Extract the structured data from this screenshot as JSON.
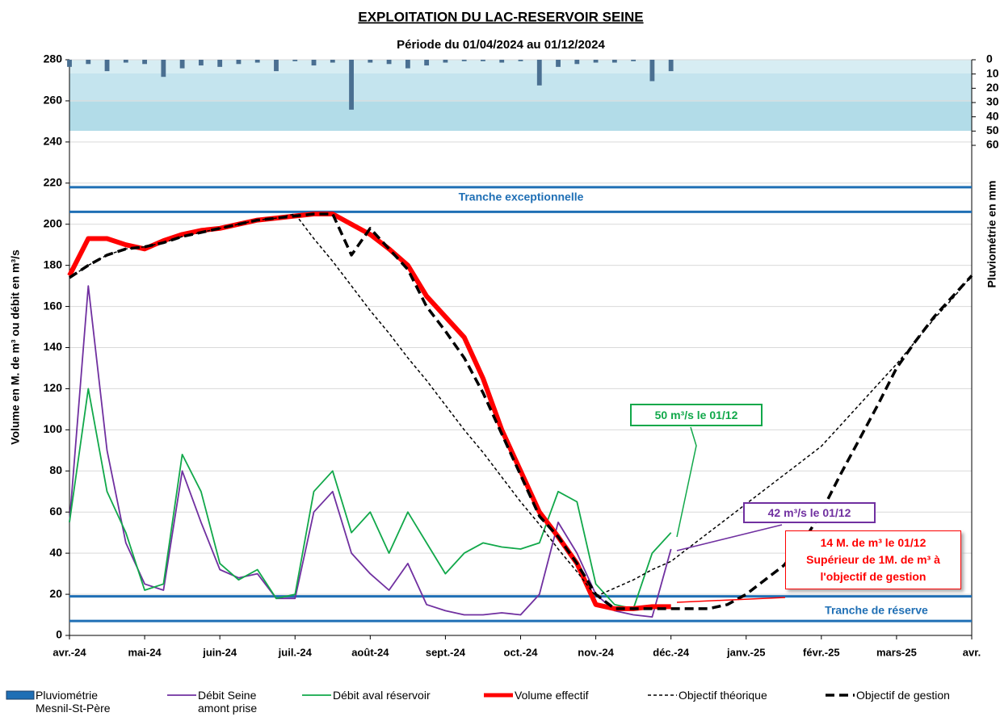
{
  "chart_data": {
    "type": "line",
    "title": "EXPLOITATION  DU  LAC-RESERVOIR  SEINE",
    "subtitle": "Période du 01/04/2024 au 01/12/2024",
    "y_label": "Volume en M. de m³ ou débit en m³/s",
    "y2_label": "Pluviométrie en mm",
    "categories": [
      "avr.-24",
      null,
      null,
      null,
      "mai-24",
      null,
      null,
      null,
      "juin-24",
      null,
      null,
      null,
      "juil.-24",
      null,
      null,
      null,
      "août-24",
      null,
      null,
      null,
      "sept.-24",
      null,
      null,
      null,
      "oct.-24",
      null,
      null,
      null,
      "nov.-24",
      null,
      null,
      null,
      "déc.-24",
      null,
      null,
      null,
      "janv.-25",
      null,
      null,
      null,
      "févr.-25",
      null,
      null,
      null,
      "mars-25",
      null,
      null,
      null,
      "avr."
    ],
    "ylim": [
      0,
      280
    ],
    "yticks": [
      0,
      20,
      40,
      60,
      80,
      100,
      120,
      140,
      160,
      180,
      200,
      220,
      240,
      260,
      280
    ],
    "y2lim": [
      0,
      60
    ],
    "y2ticks": [
      0,
      10,
      20,
      30,
      40,
      50,
      60
    ],
    "y2_inverted": true,
    "grid": true,
    "reference_lines": [
      {
        "value": 218
      },
      {
        "value": 206,
        "label": "Tranche exceptionnelle"
      },
      {
        "value": 19,
        "label": "Tranche de réserve"
      },
      {
        "value": 7
      }
    ],
    "reference_color": "#1f6fb5",
    "series": [
      {
        "name": "Pluviométrie Mesnil-St-Père",
        "type": "bar",
        "axis": "y2",
        "color": "#4a6f91",
        "values": [
          5,
          3,
          8,
          2,
          3,
          12,
          6,
          4,
          5,
          3,
          2,
          8,
          1,
          4,
          2,
          35,
          2,
          3,
          6,
          4,
          2,
          1,
          1,
          2,
          1,
          18,
          5,
          3,
          2,
          2,
          1,
          15,
          8,
          null,
          null,
          null,
          null,
          null,
          null,
          null,
          null,
          null,
          null,
          null,
          null,
          null,
          null,
          null,
          null
        ]
      },
      {
        "name": "Débit Seine amont prise",
        "color": "#7030a0",
        "style": "solid",
        "values": [
          55,
          170,
          90,
          45,
          25,
          22,
          80,
          55,
          32,
          28,
          30,
          18,
          18,
          60,
          70,
          40,
          30,
          22,
          35,
          15,
          12,
          10,
          10,
          11,
          10,
          20,
          55,
          40,
          20,
          12,
          10,
          9,
          42,
          null,
          null,
          null,
          null,
          null,
          null,
          null,
          null,
          null,
          null,
          null,
          null,
          null,
          null,
          null,
          null
        ]
      },
      {
        "name": "Débit aval réservoir",
        "color": "#11a84a",
        "style": "solid",
        "values": [
          55,
          120,
          70,
          50,
          22,
          25,
          88,
          70,
          35,
          27,
          32,
          18,
          20,
          70,
          80,
          50,
          60,
          40,
          60,
          45,
          30,
          40,
          45,
          43,
          42,
          45,
          70,
          65,
          25,
          15,
          13,
          40,
          50,
          null,
          null,
          null,
          null,
          null,
          null,
          null,
          null,
          null,
          null,
          null,
          null,
          null,
          null,
          null,
          null
        ]
      },
      {
        "name": "Volume effectif",
        "color": "#ff0000",
        "style": "thick",
        "values": [
          175,
          193,
          193,
          190,
          188,
          192,
          195,
          197,
          198,
          200,
          202,
          203,
          204,
          205,
          205,
          200,
          195,
          188,
          180,
          165,
          155,
          145,
          125,
          100,
          80,
          60,
          48,
          35,
          15,
          13,
          13,
          14,
          14,
          null,
          null,
          null,
          null,
          null,
          null,
          null,
          null,
          null,
          null,
          null,
          null,
          null,
          null,
          null,
          null
        ]
      },
      {
        "name": "Objectif théorique",
        "color": "#000000",
        "style": "dashed-thin",
        "values": [
          174,
          180,
          185,
          188,
          189,
          191,
          194,
          196,
          198,
          200,
          202,
          203,
          205,
          193,
          182,
          170,
          158,
          147,
          135,
          124,
          112,
          100,
          89,
          77,
          65,
          54,
          42,
          31,
          19,
          23,
          27,
          32,
          36,
          43,
          50,
          57,
          64,
          71,
          78,
          85,
          92,
          102,
          112,
          122,
          132,
          143,
          154,
          164,
          175
        ]
      },
      {
        "name": "Objectif de gestion",
        "color": "#000000",
        "style": "dashed-thick",
        "values": [
          174,
          180,
          185,
          188,
          189,
          191,
          194,
          196,
          198,
          200,
          202,
          203,
          204,
          205,
          205,
          185,
          198,
          188,
          178,
          160,
          148,
          135,
          118,
          98,
          78,
          58,
          48,
          35,
          20,
          13,
          13,
          13,
          13,
          13,
          13,
          15,
          20,
          27,
          34,
          45,
          60,
          78,
          95,
          112,
          130,
          143,
          155,
          165,
          175
        ]
      }
    ],
    "annotations": [
      {
        "text": "50 m³/s le 01/12",
        "color": "#11a84a"
      },
      {
        "text": "42 m³/s le 01/12",
        "color": "#7030a0"
      },
      {
        "lines": [
          "14 M. de m³ le 01/12",
          "Supérieur de 1M. de m³ à",
          "l'objectif de gestion"
        ],
        "color": "#ff0000"
      }
    ]
  }
}
